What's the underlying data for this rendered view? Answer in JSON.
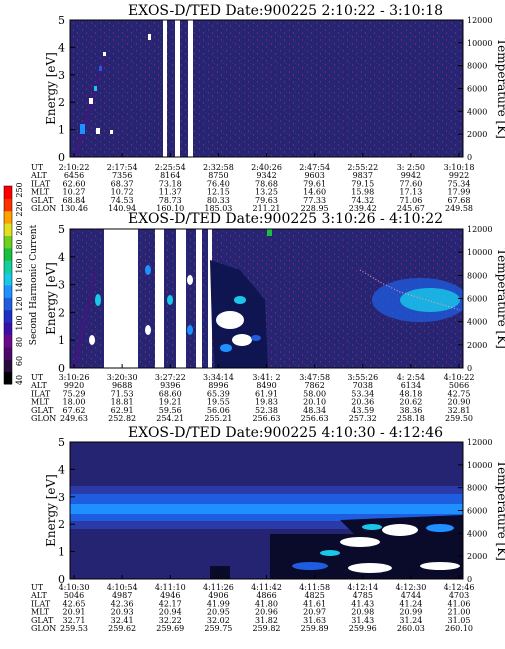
{
  "colors": {
    "background_low": "#252573",
    "noise_dots": "#6a2a6e",
    "data_gap": "#ffffff",
    "colorbar": [
      "#000000",
      "#2a0a3a",
      "#4a0a6a",
      "#6a0a8a",
      "#3a10a8",
      "#1f30c8",
      "#1f5de0",
      "#1e90ff",
      "#19c8e8",
      "#13d0a0",
      "#18c040",
      "#70d020",
      "#e0e020",
      "#ffa000",
      "#ff3000",
      "#ff0000"
    ]
  },
  "colorbar": {
    "label": "Second Harmonic Current",
    "ticks": [
      "40",
      "60",
      "80",
      "100",
      "120",
      "140",
      "160",
      "180",
      "200",
      "220",
      "250"
    ]
  },
  "chart_data": [
    {
      "type": "heatmap",
      "title": "EXOS-D/TED   Date:900225  2:10:22 - 3:10:18",
      "ylabel": "Energy [eV]",
      "ylabel_right": "Temperature [K]",
      "yticks_left": [
        "0",
        "1",
        "2",
        "3",
        "4",
        "5"
      ],
      "yticks_right": [
        "0",
        "2000",
        "4000",
        "6000",
        "8000",
        "10000",
        "12000"
      ],
      "ylim": [
        0,
        5
      ],
      "ylim_right": [
        0,
        12000
      ],
      "table": {
        "row_labels": [
          "UT",
          "ALT",
          "ILAT",
          "MLT",
          "GLAT",
          "GLON"
        ],
        "columns": [
          [
            "2:10:22",
            "6456",
            "62.60",
            "10.27",
            "68.84",
            "130.46"
          ],
          [
            "2:17:54",
            "7356",
            "68.37",
            "10.72",
            "74.53",
            "140.94"
          ],
          [
            "2:25:54",
            "8164",
            "73.18",
            "11.37",
            "78.73",
            "160.10"
          ],
          [
            "2:32:58",
            "8750",
            "76.40",
            "12.15",
            "80.33",
            "185.03"
          ],
          [
            "2:40:26",
            "9342",
            "78.68",
            "13.25",
            "79.63",
            "211.21"
          ],
          [
            "2:47:54",
            "9603",
            "79.61",
            "14.60",
            "77.33",
            "228.95"
          ],
          [
            "2:55:22",
            "9837",
            "79.15",
            "15.98",
            "74.32",
            "239.42"
          ],
          [
            "3: 2:50",
            "9942",
            "77.60",
            "17.13",
            "71.06",
            "245.67"
          ],
          [
            "3:10:18",
            "9922",
            "75.34",
            "17.99",
            "67.68",
            "249.58"
          ]
        ]
      }
    },
    {
      "type": "heatmap",
      "title": "EXOS-D/TED   Date:900225  3:10:26 - 4:10:22",
      "ylabel": "Energy [eV]",
      "ylabel_right": "Temperature [K]",
      "yticks_left": [
        "0",
        "1",
        "2",
        "3",
        "4",
        "5"
      ],
      "yticks_right": [
        "0",
        "2000",
        "4000",
        "6000",
        "8000",
        "10000",
        "12000"
      ],
      "ylim": [
        0,
        5
      ],
      "ylim_right": [
        0,
        12000
      ],
      "table": {
        "row_labels": [
          "UT",
          "ALT",
          "ILAT",
          "MLT",
          "GLAT",
          "GLON"
        ],
        "columns": [
          [
            "3:10:26",
            "9920",
            "75.29",
            "18.00",
            "67.62",
            "249.63"
          ],
          [
            "3:20:30",
            "9688",
            "71.53",
            "18.81",
            "62.91",
            "252.82"
          ],
          [
            "3:27:22",
            "9396",
            "68.60",
            "19.21",
            "59.56",
            "254.21"
          ],
          [
            "3:34:14",
            "8996",
            "65.39",
            "19.55",
            "56.06",
            "255.21"
          ],
          [
            "3:41: 2",
            "8490",
            "61.91",
            "19.83",
            "52.38",
            "256.63"
          ],
          [
            "3:47:58",
            "7862",
            "58.00",
            "20.10",
            "48.34",
            "256.63"
          ],
          [
            "3:55:26",
            "7038",
            "53.34",
            "20.36",
            "43.59",
            "257.32"
          ],
          [
            "4: 2:54",
            "6134",
            "48.18",
            "20.62",
            "38.36",
            "258.18"
          ],
          [
            "4:10:22",
            "5066",
            "42.75",
            "20.90",
            "32.81",
            "259.50"
          ]
        ]
      }
    },
    {
      "type": "heatmap",
      "title": "EXOS-D/TED   Date:900225  4:10:30 - 4:12:46",
      "ylabel": "Energy [eV]",
      "ylabel_right": "Temperature [K]",
      "yticks_left": [
        "0",
        "1",
        "2",
        "3",
        "4",
        "5"
      ],
      "yticks_right": [
        "0",
        "2000",
        "4000",
        "6000",
        "8000",
        "10000",
        "12000"
      ],
      "ylim": [
        0,
        5
      ],
      "ylim_right": [
        0,
        12000
      ],
      "table": {
        "row_labels": [
          "UT",
          "ALT",
          "ILAT",
          "MLT",
          "GLAT",
          "GLON"
        ],
        "columns": [
          [
            "4:10:30",
            "5046",
            "42.65",
            "20.91",
            "32.71",
            "259.53"
          ],
          [
            "4:10:54",
            "4987",
            "42.36",
            "20.93",
            "32.41",
            "259.62"
          ],
          [
            "4:11:10",
            "4946",
            "42.17",
            "20.94",
            "32.22",
            "259.69"
          ],
          [
            "4:11:26",
            "4906",
            "41.99",
            "20.95",
            "32.02",
            "259.75"
          ],
          [
            "4:11:42",
            "4866",
            "41.80",
            "20.96",
            "31.82",
            "259.82"
          ],
          [
            "4:11:58",
            "4825",
            "41.61",
            "20.97",
            "31.63",
            "259.89"
          ],
          [
            "4:12:14",
            "4785",
            "41.43",
            "20.98",
            "31.43",
            "259.96"
          ],
          [
            "4:12:30",
            "4744",
            "41.24",
            "20.99",
            "31.24",
            "260.03"
          ],
          [
            "4:12:46",
            "4703",
            "41.06",
            "21.00",
            "31.05",
            "260.10"
          ]
        ]
      }
    }
  ]
}
